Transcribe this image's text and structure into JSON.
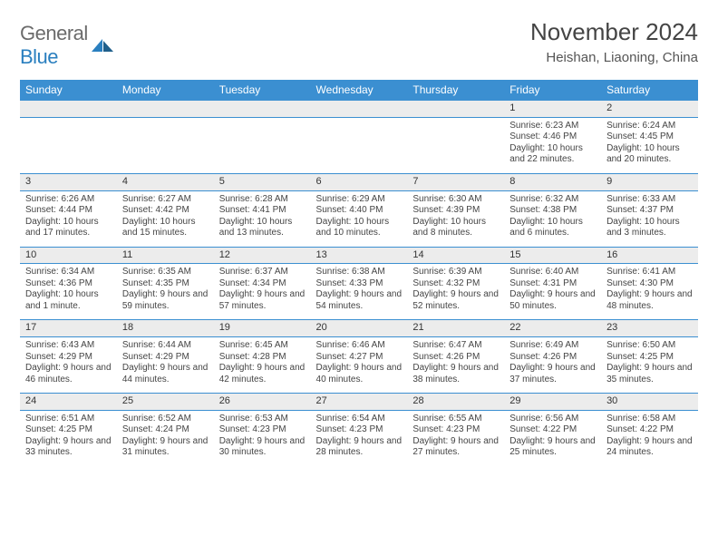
{
  "brand": {
    "name_a": "General",
    "name_b": "Blue"
  },
  "title": "November 2024",
  "location": "Heishan, Liaoning, China",
  "colors": {
    "header_bg": "#3b8fd1",
    "daynum_bg": "#ececec",
    "rule": "#3b8fd1",
    "text": "#444444"
  },
  "weekdays": [
    "Sunday",
    "Monday",
    "Tuesday",
    "Wednesday",
    "Thursday",
    "Friday",
    "Saturday"
  ],
  "weeks": [
    [
      null,
      null,
      null,
      null,
      null,
      {
        "n": "1",
        "sr": "Sunrise: 6:23 AM",
        "ss": "Sunset: 4:46 PM",
        "dl": "Daylight: 10 hours and 22 minutes."
      },
      {
        "n": "2",
        "sr": "Sunrise: 6:24 AM",
        "ss": "Sunset: 4:45 PM",
        "dl": "Daylight: 10 hours and 20 minutes."
      }
    ],
    [
      {
        "n": "3",
        "sr": "Sunrise: 6:26 AM",
        "ss": "Sunset: 4:44 PM",
        "dl": "Daylight: 10 hours and 17 minutes."
      },
      {
        "n": "4",
        "sr": "Sunrise: 6:27 AM",
        "ss": "Sunset: 4:42 PM",
        "dl": "Daylight: 10 hours and 15 minutes."
      },
      {
        "n": "5",
        "sr": "Sunrise: 6:28 AM",
        "ss": "Sunset: 4:41 PM",
        "dl": "Daylight: 10 hours and 13 minutes."
      },
      {
        "n": "6",
        "sr": "Sunrise: 6:29 AM",
        "ss": "Sunset: 4:40 PM",
        "dl": "Daylight: 10 hours and 10 minutes."
      },
      {
        "n": "7",
        "sr": "Sunrise: 6:30 AM",
        "ss": "Sunset: 4:39 PM",
        "dl": "Daylight: 10 hours and 8 minutes."
      },
      {
        "n": "8",
        "sr": "Sunrise: 6:32 AM",
        "ss": "Sunset: 4:38 PM",
        "dl": "Daylight: 10 hours and 6 minutes."
      },
      {
        "n": "9",
        "sr": "Sunrise: 6:33 AM",
        "ss": "Sunset: 4:37 PM",
        "dl": "Daylight: 10 hours and 3 minutes."
      }
    ],
    [
      {
        "n": "10",
        "sr": "Sunrise: 6:34 AM",
        "ss": "Sunset: 4:36 PM",
        "dl": "Daylight: 10 hours and 1 minute."
      },
      {
        "n": "11",
        "sr": "Sunrise: 6:35 AM",
        "ss": "Sunset: 4:35 PM",
        "dl": "Daylight: 9 hours and 59 minutes."
      },
      {
        "n": "12",
        "sr": "Sunrise: 6:37 AM",
        "ss": "Sunset: 4:34 PM",
        "dl": "Daylight: 9 hours and 57 minutes."
      },
      {
        "n": "13",
        "sr": "Sunrise: 6:38 AM",
        "ss": "Sunset: 4:33 PM",
        "dl": "Daylight: 9 hours and 54 minutes."
      },
      {
        "n": "14",
        "sr": "Sunrise: 6:39 AM",
        "ss": "Sunset: 4:32 PM",
        "dl": "Daylight: 9 hours and 52 minutes."
      },
      {
        "n": "15",
        "sr": "Sunrise: 6:40 AM",
        "ss": "Sunset: 4:31 PM",
        "dl": "Daylight: 9 hours and 50 minutes."
      },
      {
        "n": "16",
        "sr": "Sunrise: 6:41 AM",
        "ss": "Sunset: 4:30 PM",
        "dl": "Daylight: 9 hours and 48 minutes."
      }
    ],
    [
      {
        "n": "17",
        "sr": "Sunrise: 6:43 AM",
        "ss": "Sunset: 4:29 PM",
        "dl": "Daylight: 9 hours and 46 minutes."
      },
      {
        "n": "18",
        "sr": "Sunrise: 6:44 AM",
        "ss": "Sunset: 4:29 PM",
        "dl": "Daylight: 9 hours and 44 minutes."
      },
      {
        "n": "19",
        "sr": "Sunrise: 6:45 AM",
        "ss": "Sunset: 4:28 PM",
        "dl": "Daylight: 9 hours and 42 minutes."
      },
      {
        "n": "20",
        "sr": "Sunrise: 6:46 AM",
        "ss": "Sunset: 4:27 PM",
        "dl": "Daylight: 9 hours and 40 minutes."
      },
      {
        "n": "21",
        "sr": "Sunrise: 6:47 AM",
        "ss": "Sunset: 4:26 PM",
        "dl": "Daylight: 9 hours and 38 minutes."
      },
      {
        "n": "22",
        "sr": "Sunrise: 6:49 AM",
        "ss": "Sunset: 4:26 PM",
        "dl": "Daylight: 9 hours and 37 minutes."
      },
      {
        "n": "23",
        "sr": "Sunrise: 6:50 AM",
        "ss": "Sunset: 4:25 PM",
        "dl": "Daylight: 9 hours and 35 minutes."
      }
    ],
    [
      {
        "n": "24",
        "sr": "Sunrise: 6:51 AM",
        "ss": "Sunset: 4:25 PM",
        "dl": "Daylight: 9 hours and 33 minutes."
      },
      {
        "n": "25",
        "sr": "Sunrise: 6:52 AM",
        "ss": "Sunset: 4:24 PM",
        "dl": "Daylight: 9 hours and 31 minutes."
      },
      {
        "n": "26",
        "sr": "Sunrise: 6:53 AM",
        "ss": "Sunset: 4:23 PM",
        "dl": "Daylight: 9 hours and 30 minutes."
      },
      {
        "n": "27",
        "sr": "Sunrise: 6:54 AM",
        "ss": "Sunset: 4:23 PM",
        "dl": "Daylight: 9 hours and 28 minutes."
      },
      {
        "n": "28",
        "sr": "Sunrise: 6:55 AM",
        "ss": "Sunset: 4:23 PM",
        "dl": "Daylight: 9 hours and 27 minutes."
      },
      {
        "n": "29",
        "sr": "Sunrise: 6:56 AM",
        "ss": "Sunset: 4:22 PM",
        "dl": "Daylight: 9 hours and 25 minutes."
      },
      {
        "n": "30",
        "sr": "Sunrise: 6:58 AM",
        "ss": "Sunset: 4:22 PM",
        "dl": "Daylight: 9 hours and 24 minutes."
      }
    ]
  ]
}
